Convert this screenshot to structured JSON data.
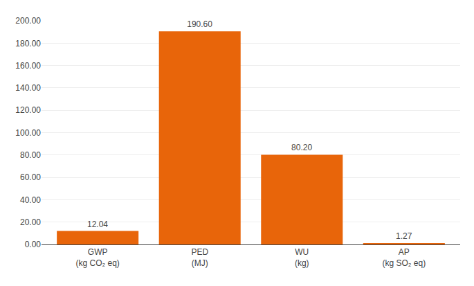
{
  "chart_data": {
    "type": "bar",
    "categories": [
      "GWP\n(kg CO₂ eq)",
      "PED\n(MJ)",
      "WU\n(kg)",
      "AP\n(kg SO₂ eq)"
    ],
    "values": [
      12.04,
      190.6,
      80.2,
      1.27
    ],
    "value_labels": [
      "12.04",
      "190.60",
      "80.20",
      "1.27"
    ],
    "data_labels": true,
    "color": "#E8650A",
    "ylim": [
      0,
      200
    ],
    "yticks": [
      {
        "value": 0,
        "label": "0.00"
      },
      {
        "value": 20,
        "label": "20.00"
      },
      {
        "value": 40,
        "label": "40.00"
      },
      {
        "value": 60,
        "label": "60.00"
      },
      {
        "value": 80,
        "label": "80.00"
      },
      {
        "value": 100,
        "label": "100.00"
      },
      {
        "value": 120,
        "label": "120.00"
      },
      {
        "value": 140,
        "label": "140.00"
      },
      {
        "value": 160,
        "label": "160.00"
      },
      {
        "value": 180,
        "label": "180.00"
      },
      {
        "value": 200,
        "label": "200.00"
      }
    ],
    "grid": true
  }
}
